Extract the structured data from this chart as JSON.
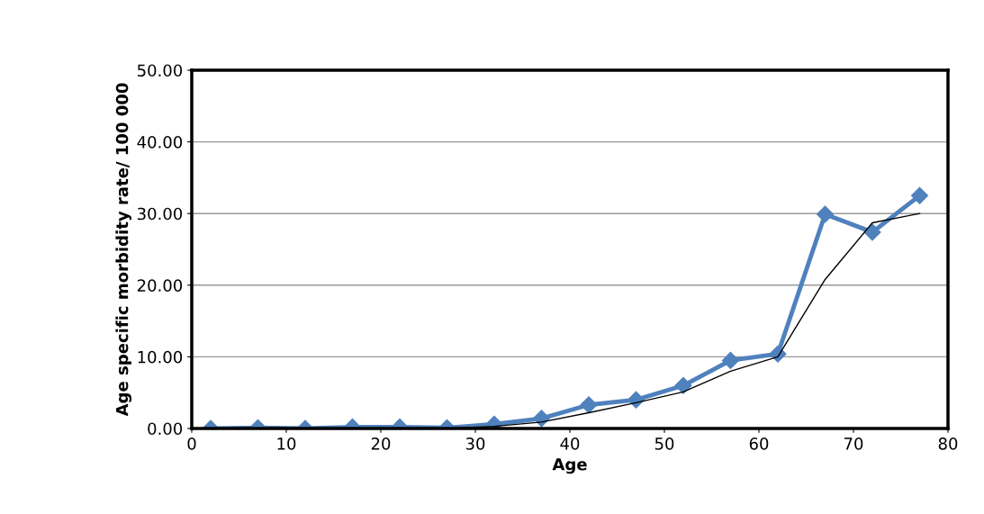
{
  "chart_data": {
    "type": "line",
    "xlabel": "Age",
    "ylabel": "Age specific morbidity rate/ 100 000",
    "x": [
      2,
      7,
      12,
      17,
      22,
      27,
      32,
      37,
      42,
      47,
      52,
      57,
      62,
      67,
      72,
      77
    ],
    "series": [
      {
        "color": "#4f81bd",
        "marker": "diamond",
        "values": [
          0,
          0.1,
          0,
          0.2,
          0.2,
          0.1,
          0.6,
          1.4,
          3.3,
          4.0,
          6.0,
          9.5,
          10.4,
          29.9,
          27.4,
          32.5
        ]
      },
      {
        "color": "#000000",
        "marker": "none",
        "values": [
          0,
          0,
          0,
          0,
          0,
          0,
          0.3,
          0.9,
          2.2,
          3.6,
          5.1,
          8.0,
          10.0,
          20.8,
          28.7,
          30.0
        ]
      }
    ],
    "xlim": [
      0,
      80
    ],
    "xticks": [
      0,
      10,
      20,
      30,
      40,
      50,
      60,
      70,
      80
    ],
    "ylim": [
      0,
      50
    ],
    "yticks": [
      {
        "value": 0,
        "label": "0.00"
      },
      {
        "value": 10,
        "label": "10.00"
      },
      {
        "value": 20,
        "label": "20.00"
      },
      {
        "value": 30,
        "label": "30.00"
      },
      {
        "value": 40,
        "label": "40.00"
      },
      {
        "value": 50,
        "label": "50.00"
      }
    ],
    "grid": "y",
    "legend": false
  }
}
